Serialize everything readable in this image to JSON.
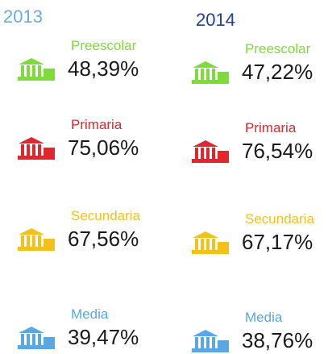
{
  "columns": [
    {
      "year": "2013",
      "year_color": "#6aaee0",
      "items": [
        {
          "label": "Preescolar",
          "value": "48,39%",
          "color": "#7ddc3a"
        },
        {
          "label": "Primaria",
          "value": "75,06%",
          "color": "#e3262c"
        },
        {
          "label": "Secundaria",
          "value": "67,56%",
          "color": "#f4c01c"
        },
        {
          "label": "Media",
          "value": "39,47%",
          "color": "#5ba7e4"
        }
      ]
    },
    {
      "year": "2014",
      "year_color": "#1f3f98",
      "items": [
        {
          "label": "Preescolar",
          "value": "47,22%",
          "color": "#7ddc3a"
        },
        {
          "label": "Primaria",
          "value": "76,54%",
          "color": "#e3262c"
        },
        {
          "label": "Secundaria",
          "value": "67,17%",
          "color": "#f4c01c"
        },
        {
          "label": "Media",
          "value": "38,76%",
          "color": "#5ba7e4"
        }
      ]
    }
  ]
}
